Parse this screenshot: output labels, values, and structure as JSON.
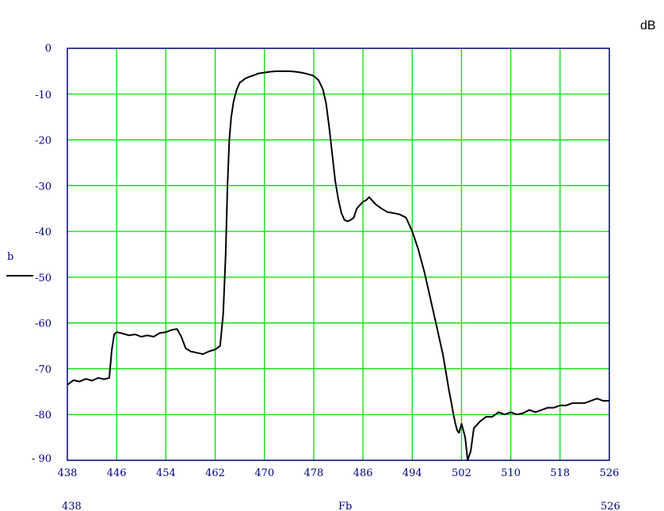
{
  "chart_data": {
    "type": "line",
    "unit_label": "dB",
    "xlabel": "Fb",
    "x_range_start_label": "438",
    "x_range_end_label": "526",
    "legend": {
      "label": "b",
      "placement": "left"
    },
    "xlim": [
      438,
      526
    ],
    "ylim": [
      -90,
      0
    ],
    "x_ticks": [
      438,
      446,
      454,
      462,
      470,
      478,
      486,
      494,
      502,
      510,
      518,
      526
    ],
    "x_tick_labels": [
      "438",
      "446",
      "454",
      "462",
      "470",
      "478",
      "486",
      "494",
      "502",
      "510",
      "518",
      "526"
    ],
    "y_ticks": [
      0,
      -10,
      -20,
      -30,
      -40,
      -50,
      -60,
      -70,
      -80,
      -90
    ],
    "y_tick_labels": [
      "0",
      "-10",
      "-20",
      "-30",
      "-40",
      "-50",
      "-60",
      "-70",
      "-80",
      "- 90"
    ],
    "grid": true,
    "colors": {
      "grid": "#00dd00",
      "frame": "#000080",
      "line": "#000000",
      "text": "#000080"
    },
    "series": [
      {
        "name": "b",
        "x": [
          438,
          439,
          440,
          441,
          442,
          443,
          444,
          444.8,
          445.2,
          445.6,
          446,
          447,
          448,
          449,
          450,
          451,
          452,
          453,
          454,
          455,
          455.8,
          456.5,
          457.2,
          458,
          459,
          460,
          461,
          462,
          462.8,
          463.3,
          463.7,
          464,
          464.3,
          464.6,
          465,
          465.5,
          466,
          467,
          468,
          469,
          470,
          471,
          472,
          473,
          474,
          475,
          476,
          477,
          478,
          478.8,
          479.5,
          480,
          480.5,
          481,
          481.5,
          482,
          482.5,
          483,
          483.5,
          484,
          484.5,
          485,
          486,
          486.5,
          487,
          488,
          489,
          490,
          491,
          492,
          493,
          494,
          495,
          496,
          497,
          498,
          499,
          499.5,
          500,
          500.3,
          500.7,
          501,
          501.3,
          501.6,
          502,
          502.3,
          502.6,
          503,
          503.5,
          504,
          505,
          506,
          507,
          508,
          509,
          510,
          511,
          512,
          513,
          514,
          515,
          516,
          517,
          518,
          519,
          520,
          521,
          522,
          523,
          524,
          525,
          526
        ],
        "y": [
          -73.5,
          -72.5,
          -72.8,
          -72.2,
          -72.6,
          -72,
          -72.3,
          -72,
          -66,
          -62.5,
          -62,
          -62.3,
          -62.7,
          -62.5,
          -63,
          -62.7,
          -63,
          -62.2,
          -62,
          -61.5,
          -61.3,
          -63,
          -65.5,
          -66.2,
          -66.5,
          -66.8,
          -66.2,
          -65.8,
          -65,
          -58,
          -45,
          -30,
          -20,
          -15,
          -11.5,
          -9,
          -7.5,
          -6.5,
          -6,
          -5.5,
          -5.3,
          -5.1,
          -5,
          -5,
          -5,
          -5.1,
          -5.3,
          -5.6,
          -6,
          -7,
          -9,
          -12,
          -17,
          -23,
          -29,
          -33,
          -36,
          -37.5,
          -37.8,
          -37.5,
          -37,
          -35,
          -33.5,
          -33.2,
          -32.5,
          -34,
          -35,
          -35.8,
          -36,
          -36.3,
          -37,
          -40,
          -44,
          -49,
          -55,
          -61,
          -67,
          -71,
          -75,
          -77,
          -80,
          -82,
          -83.5,
          -84,
          -82,
          -83.5,
          -85,
          -90,
          -88,
          -83,
          -81.5,
          -80.5,
          -80.5,
          -79.5,
          -80,
          -79.5,
          -80,
          -79.7,
          -79,
          -79.5,
          -79,
          -78.5,
          -78.5,
          -78,
          -78,
          -77.5,
          -77.5,
          -77.5,
          -77,
          -76.5,
          -77,
          -77
        ]
      }
    ]
  }
}
